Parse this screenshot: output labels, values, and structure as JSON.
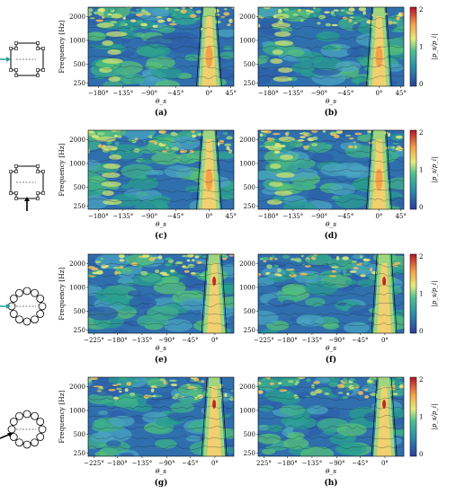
{
  "figure": {
    "rows": [
      {
        "geometry": "cross",
        "arrow": {
          "color": "#2aa198",
          "direction": "left"
        },
        "panels": [
          {
            "caption": "(a)",
            "show_ylabel": true
          },
          {
            "caption": "(b)",
            "show_ylabel": false
          }
        ],
        "colorbar": {
          "label": "|p_s/p_i|",
          "ticks": [
            "2",
            "1",
            "0"
          ]
        }
      },
      {
        "geometry": "cross",
        "arrow": {
          "color": "#000000",
          "direction": "bottom"
        },
        "panels": [
          {
            "caption": "(c)",
            "show_ylabel": true
          },
          {
            "caption": "(d)",
            "show_ylabel": false
          }
        ],
        "colorbar": {
          "label": "|p_s/p_i|",
          "ticks": [
            "2",
            "1",
            "0"
          ]
        }
      },
      {
        "geometry": "circle",
        "arrow": {
          "color": "#2aa198",
          "direction": "left"
        },
        "panels": [
          {
            "caption": "(e)",
            "show_ylabel": true
          },
          {
            "caption": "(f)",
            "show_ylabel": false
          }
        ],
        "colorbar": {
          "label": "|p_s/p_i|",
          "ticks": [
            "2",
            "1",
            "0"
          ]
        }
      },
      {
        "geometry": "circle",
        "arrow": {
          "color": "#000000",
          "direction": "lower-left"
        },
        "panels": [
          {
            "caption": "(g)",
            "show_ylabel": true
          },
          {
            "caption": "(h)",
            "show_ylabel": false
          }
        ],
        "colorbar": {
          "label": "|p_s/p_i|",
          "ticks": [
            "2",
            "1",
            "0"
          ]
        }
      }
    ],
    "ylabel": "Frequency [Hz]",
    "xlabel": "θ_s",
    "y_ticks": [
      "2000",
      "1000",
      "500",
      "250"
    ],
    "x_ticks_rows_ab_cd": [
      "−180°",
      "−135°",
      "−90°",
      "−45°",
      "0°",
      "45°"
    ],
    "x_ticks_rows_ef_gh": [
      "−225°",
      "−180°",
      "−135°",
      "−90°",
      "−45°",
      "0°"
    ],
    "x_ticks_row_h": [
      "225°",
      "−180°",
      "−135°",
      "−90°",
      "−45°",
      "0°"
    ]
  },
  "colors": {
    "low": "#3b4cc0",
    "mid_low": "#2f9e8f",
    "mid": "#d9e86a",
    "high": "#f0a040",
    "max": "#c01a28"
  }
}
